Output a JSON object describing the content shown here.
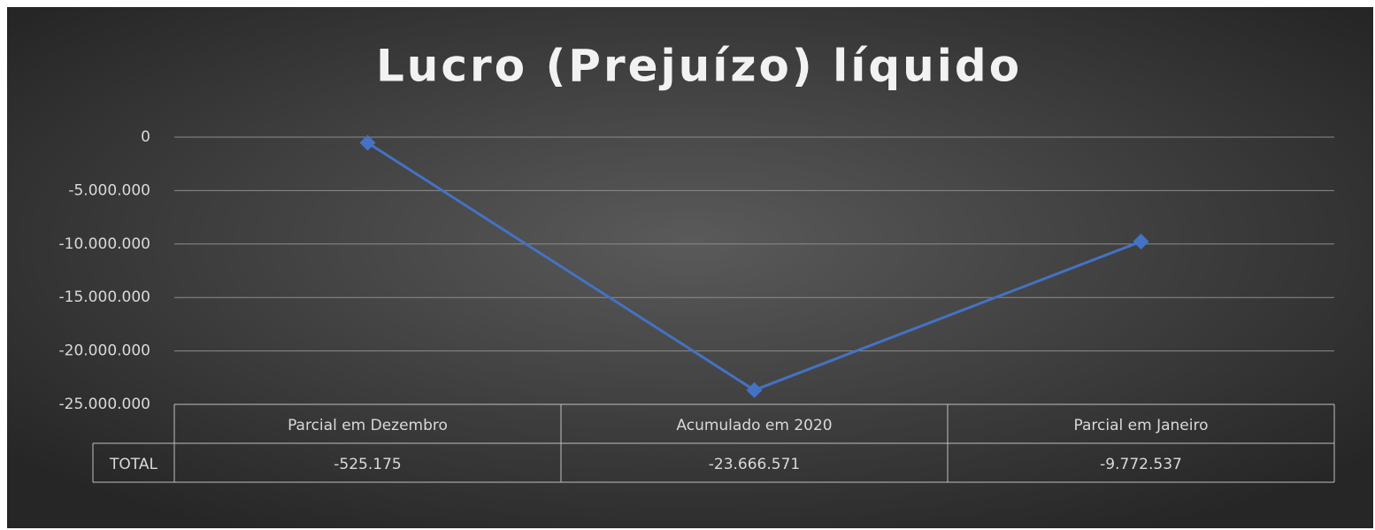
{
  "chart_data": {
    "type": "line",
    "title": "Lucro (Prejuízo) líquido",
    "categories": [
      "Parcial em Dezembro",
      "Acumulado em 2020",
      "Parcial em Janeiro"
    ],
    "series": [
      {
        "name": "TOTAL",
        "color": "#4472c4",
        "values": [
          -525175,
          -23666571,
          -9772537
        ],
        "value_labels": [
          "-525.175",
          "-23.666.571",
          "-9.772.537"
        ]
      }
    ],
    "ylim": [
      -25000000,
      0
    ],
    "yticks": [
      0,
      {
        "value": -5000000,
        "label": "-5.000.000"
      },
      {
        "value": -10000000,
        "label": "-10.000.000"
      },
      {
        "value": -15000000,
        "label": "-15.000.000"
      },
      {
        "value": -20000000,
        "label": "-20.000.000"
      },
      {
        "value": -25000000,
        "label": "-25.000.000"
      }
    ],
    "grid": true
  }
}
